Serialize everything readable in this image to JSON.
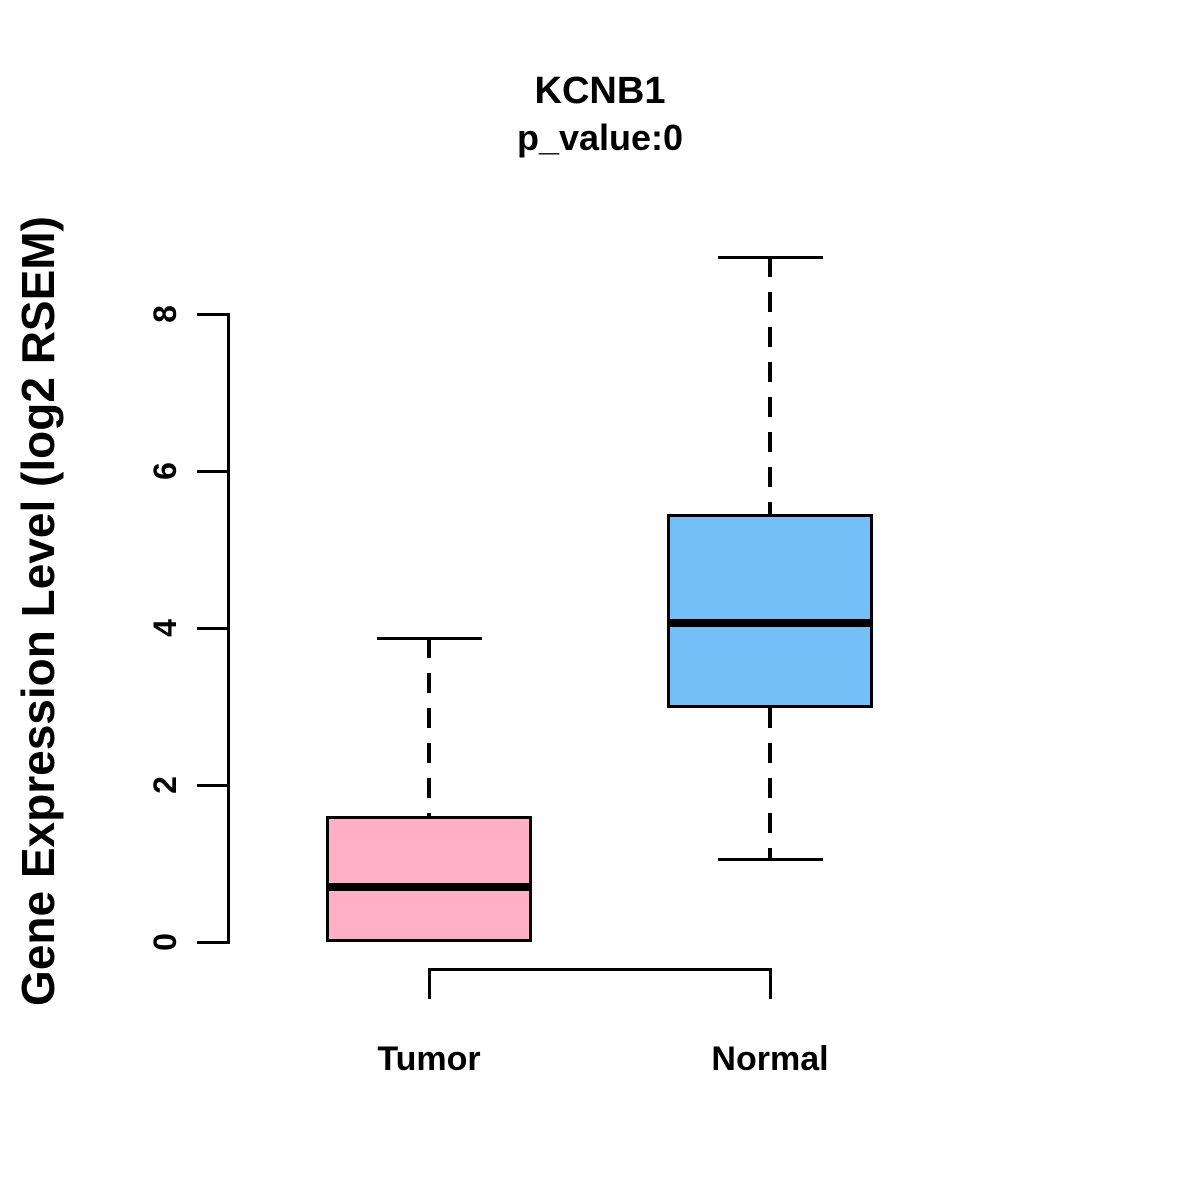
{
  "title": "KCNB1",
  "subtitle": "p_value:0",
  "colors": {
    "tumor_fill": "#FFAFC7",
    "normal_fill": "#74BFF8",
    "stroke": "#000000",
    "background": "#FFFFFF"
  },
  "chart_data": {
    "type": "boxplot",
    "title": "KCNB1",
    "subtitle": "p_value:0",
    "xlabel": "",
    "ylabel": "Gene Expression Level (log2 RSEM)",
    "categories": [
      "Tumor",
      "Normal"
    ],
    "yticks": [
      0,
      2,
      4,
      6,
      8
    ],
    "ylim": [
      0,
      8.8
    ],
    "grid": false,
    "legend": "none",
    "series": [
      {
        "name": "Tumor",
        "color": "#FFAFC7",
        "min": 0.0,
        "q1": 0.0,
        "median": 0.7,
        "q3": 1.6,
        "max": 3.87
      },
      {
        "name": "Normal",
        "color": "#74BFF8",
        "min": 1.05,
        "q1": 2.98,
        "median": 4.06,
        "q3": 5.45,
        "max": 8.72
      }
    ],
    "significance_bracket": {
      "between": [
        "Tumor",
        "Normal"
      ],
      "label": ""
    }
  }
}
